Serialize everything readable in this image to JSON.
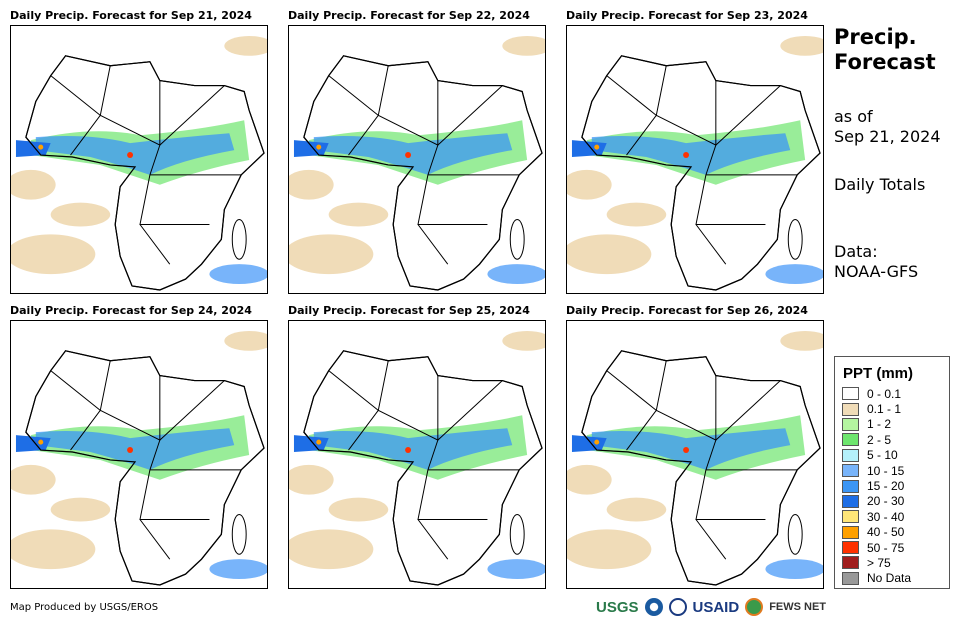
{
  "panels": [
    {
      "title": "Daily Precip. Forecast for Sep 21, 2024"
    },
    {
      "title": "Daily Precip. Forecast for Sep 22, 2024"
    },
    {
      "title": "Daily Precip. Forecast for Sep 23, 2024"
    },
    {
      "title": "Daily Precip. Forecast for Sep 24, 2024"
    },
    {
      "title": "Daily Precip. Forecast for Sep 25, 2024"
    },
    {
      "title": "Daily Precip. Forecast for Sep 26, 2024"
    }
  ],
  "side": {
    "title1": "Precip.",
    "title2": "Forecast",
    "asof": "as of",
    "date": "Sep 21, 2024",
    "totals": "Daily Totals",
    "data_label": "Data:",
    "data_source": "NOAA-GFS"
  },
  "legend": {
    "title": "PPT (mm)",
    "items": [
      {
        "label": "0 - 0.1",
        "color": "#ffffff"
      },
      {
        "label": "0.1 - 1",
        "color": "#f0dcb8"
      },
      {
        "label": "1 - 2",
        "color": "#b4f5a0"
      },
      {
        "label": "2 - 5",
        "color": "#6ee66e"
      },
      {
        "label": "5 - 10",
        "color": "#b4f0fa"
      },
      {
        "label": "10 - 15",
        "color": "#78b4fa"
      },
      {
        "label": "15 - 20",
        "color": "#3c96f5"
      },
      {
        "label": "20 - 30",
        "color": "#1e6ee6"
      },
      {
        "label": "30 - 40",
        "color": "#ffe678"
      },
      {
        "label": "40 - 50",
        "color": "#ffa000"
      },
      {
        "label": "50 - 75",
        "color": "#ff3200"
      },
      {
        "label": "> 75",
        "color": "#a01e1e"
      },
      {
        "label": "No Data",
        "color": "#999999"
      }
    ]
  },
  "footer": "Map Produced by USGS/EROS",
  "logos": {
    "usgs": "USGS",
    "usaid": "USAID",
    "fews": "FEWS NET"
  }
}
